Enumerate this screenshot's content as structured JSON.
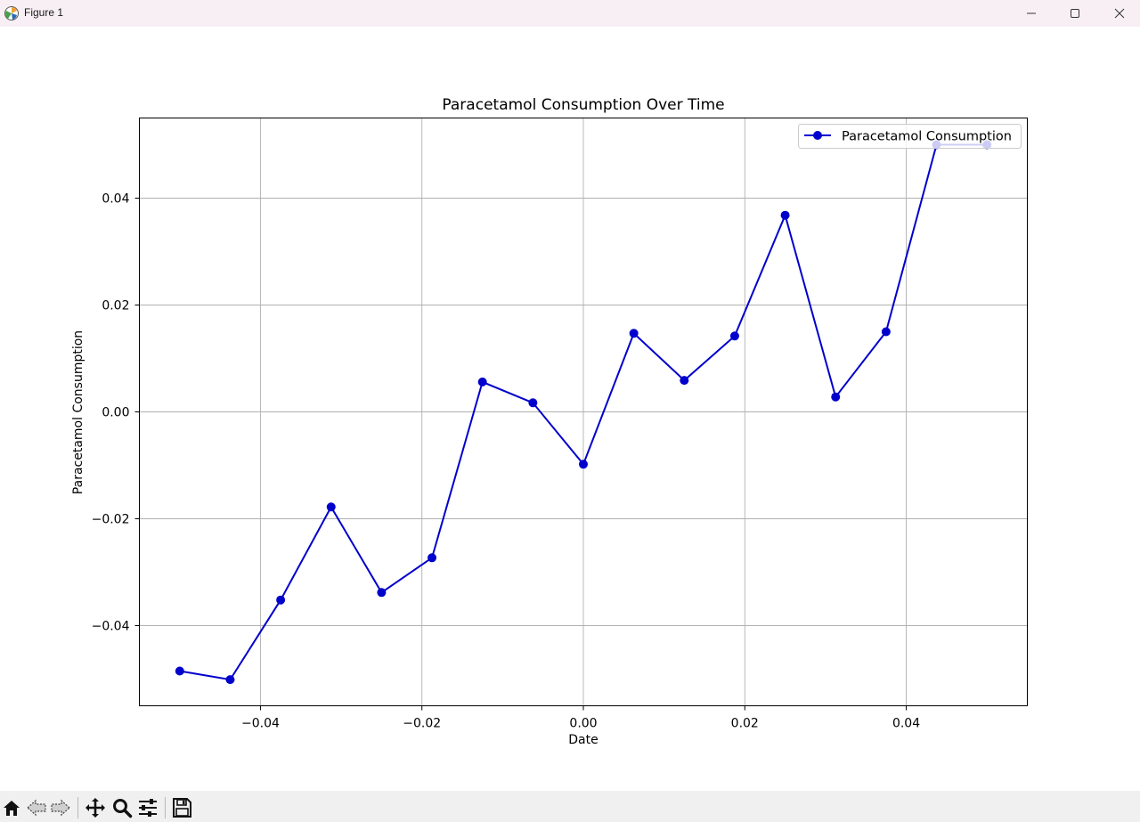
{
  "window": {
    "title": "Figure 1",
    "app_icon": "matplotlib-icon",
    "controls": [
      "minimize-icon",
      "maximize-icon",
      "close-icon"
    ]
  },
  "toolbar": {
    "buttons": [
      "home-icon",
      "back-arrow-icon",
      "forward-arrow-icon",
      "pan-icon",
      "zoom-icon",
      "configure-subplots-icon",
      "save-icon"
    ]
  },
  "chart_data": {
    "type": "line",
    "title": "Paracetamol Consumption Over Time",
    "xlabel": "Date",
    "ylabel": "Paracetamol Consumption",
    "xlim": [
      -0.055,
      0.055
    ],
    "ylim": [
      -0.055,
      0.055
    ],
    "xticks": [
      -0.04,
      -0.02,
      0.0,
      0.02,
      0.04
    ],
    "xtick_labels": [
      "−0.04",
      "−0.02",
      "0.00",
      "0.02",
      "0.04"
    ],
    "yticks": [
      -0.04,
      -0.02,
      0.0,
      0.02,
      0.04
    ],
    "ytick_labels": [
      "−0.04",
      "−0.02",
      "0.00",
      "0.02",
      "0.04"
    ],
    "grid": true,
    "legend_position": "top-right",
    "series": [
      {
        "name": "Paracetamol Consumption",
        "color": "#0000cc",
        "marker": "circle",
        "x": [
          -0.05,
          -0.04375,
          -0.0375,
          -0.03125,
          -0.025,
          -0.01875,
          -0.0125,
          -0.00625,
          0.0,
          0.00625,
          0.0125,
          0.01875,
          0.025,
          0.03125,
          0.0375,
          0.04375,
          0.05
        ],
        "y": [
          -0.0485,
          -0.0501,
          -0.0352,
          -0.0178,
          -0.0338,
          -0.0273,
          0.0056,
          0.0017,
          -0.0098,
          0.0147,
          0.0059,
          0.0142,
          0.0368,
          0.0028,
          0.015,
          0.05,
          0.05
        ]
      }
    ]
  }
}
